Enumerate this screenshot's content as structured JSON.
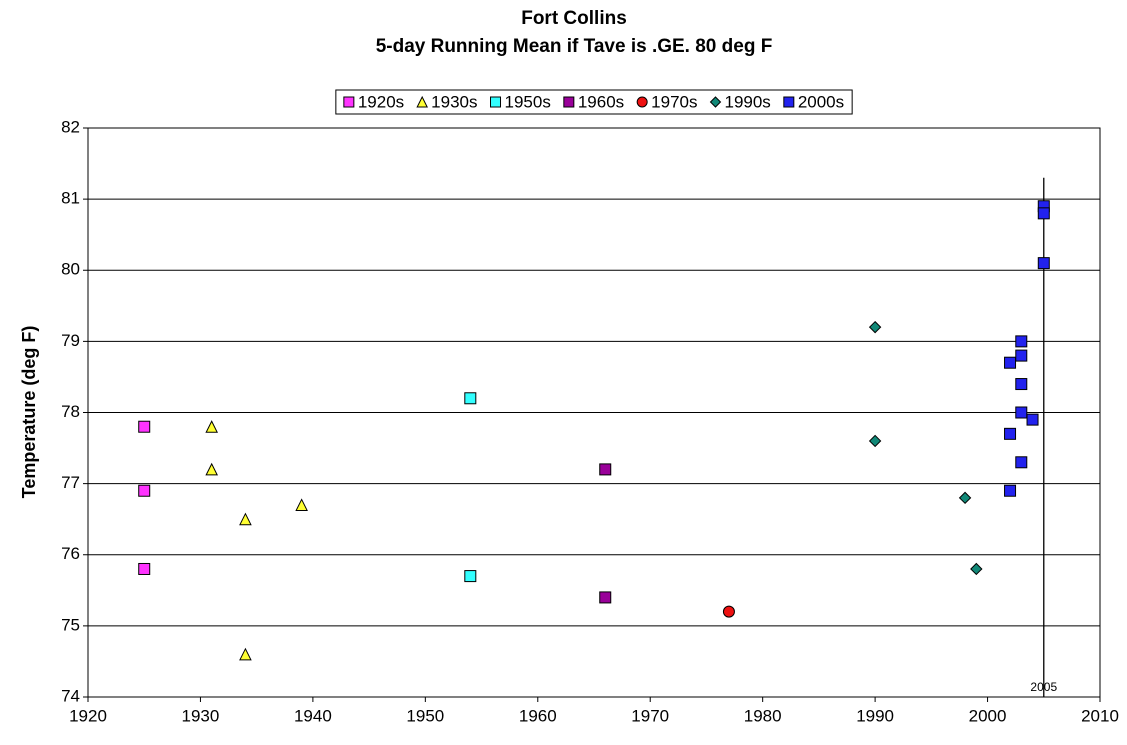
{
  "chart_data": {
    "type": "scatter",
    "title": "Fort Collins",
    "subtitle": "5-day Running Mean if Tave is .GE. 80 deg F",
    "y_label": "Temperature (deg F)",
    "xlim": [
      1920,
      2010
    ],
    "xticks": [
      1920,
      1930,
      1940,
      1950,
      1960,
      1970,
      1980,
      1990,
      2000,
      2010
    ],
    "ylim": [
      74,
      82
    ],
    "yticks": [
      74,
      75,
      76,
      77,
      78,
      79,
      80,
      81,
      82
    ],
    "grid": "y",
    "legend": "top",
    "series": [
      {
        "name": "1920s",
        "color": "#ff33ff",
        "marker": "square",
        "x": [
          1925,
          1925,
          1925
        ],
        "values": [
          77.8,
          76.9,
          75.8
        ]
      },
      {
        "name": "1930s",
        "color": "#ffff33",
        "marker": "triangle",
        "x": [
          1931,
          1931,
          1934,
          1939,
          1934
        ],
        "values": [
          77.8,
          77.2,
          76.5,
          76.7,
          74.6
        ]
      },
      {
        "name": "1950s",
        "color": "#33ffff",
        "marker": "square",
        "x": [
          1954,
          1954
        ],
        "values": [
          78.2,
          75.7
        ]
      },
      {
        "name": "1960s",
        "color": "#990099",
        "marker": "square",
        "x": [
          1966,
          1966
        ],
        "values": [
          77.2,
          75.4
        ]
      },
      {
        "name": "1970s",
        "color": "#ee1111",
        "marker": "circle",
        "x": [
          1977
        ],
        "values": [
          75.2
        ]
      },
      {
        "name": "1990s",
        "color": "#118877",
        "marker": "diamond",
        "x": [
          1990,
          1990,
          1998,
          1999
        ],
        "values": [
          79.2,
          77.6,
          76.8,
          75.8
        ]
      },
      {
        "name": "2000s",
        "color": "#2222ee",
        "marker": "square",
        "x": [
          2002,
          2002,
          2002,
          2003,
          2003,
          2003,
          2003,
          2003,
          2004,
          2005,
          2005,
          2005
        ],
        "values": [
          78.7,
          77.7,
          76.9,
          79.0,
          78.8,
          78.4,
          78.0,
          77.3,
          77.9,
          80.9,
          80.8,
          80.1
        ]
      }
    ],
    "reference_line": {
      "x": 2005,
      "y": [
        74,
        81.3
      ]
    }
  }
}
